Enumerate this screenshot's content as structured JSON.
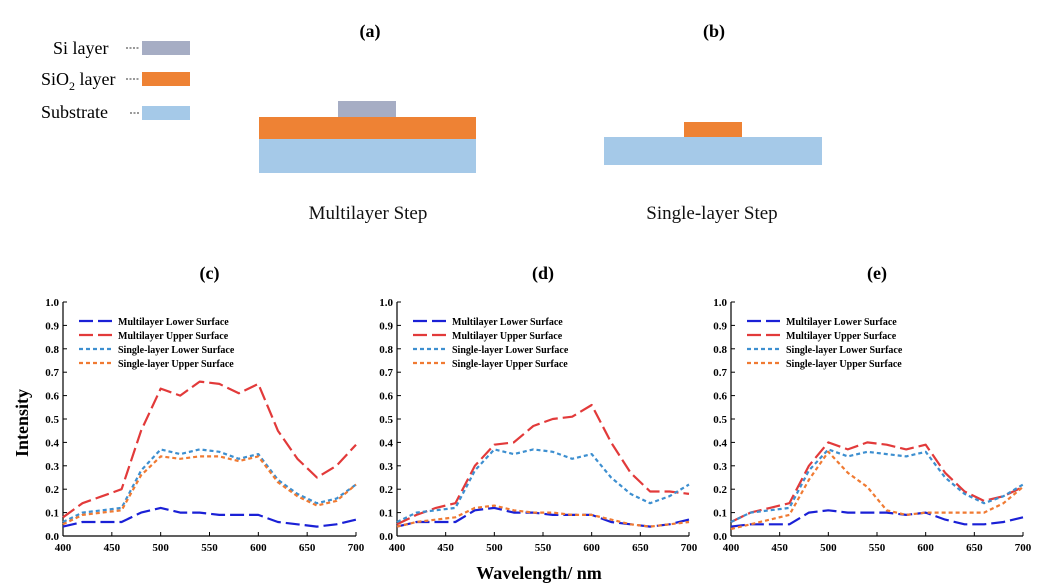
{
  "schematic": {
    "panel_a_title": "(a)",
    "panel_b_title": "(b)",
    "legend": [
      {
        "label": "Si layer",
        "color": "#a6adc4"
      },
      {
        "label": "SiO",
        "sub": "2",
        "suffix": " layer",
        "color": "#ee8234"
      },
      {
        "label": "Substrate",
        "color": "#a5c9e8"
      }
    ],
    "multilayer_caption": "Multilayer Step",
    "singlelayer_caption": "Single-layer Step"
  },
  "colors": {
    "multilayer_lower": "#1a20d6",
    "multilayer_upper": "#e23a3a",
    "singlelayer_lower": "#3d8fd0",
    "singlelayer_upper": "#f07a32"
  },
  "shared_xlabel": "Wavelength/ nm",
  "shared_ylabel": "Intensity",
  "chart_data": [
    {
      "type": "line",
      "title": "(c)",
      "xlim": [
        400,
        700
      ],
      "ylim": [
        0,
        1.0
      ],
      "xticks": [
        400,
        450,
        500,
        550,
        600,
        650,
        700
      ],
      "yticks": [
        0.0,
        0.1,
        0.2,
        0.3,
        0.4,
        0.5,
        0.6,
        0.7,
        0.8,
        0.9,
        1.0
      ],
      "legend_position": "top-left",
      "x": [
        400,
        420,
        440,
        460,
        480,
        500,
        520,
        540,
        560,
        580,
        600,
        620,
        640,
        660,
        680,
        700
      ],
      "series": [
        {
          "name": "Multilayer Lower Surface",
          "key": "multilayer_lower",
          "values": [
            0.04,
            0.06,
            0.06,
            0.06,
            0.1,
            0.12,
            0.1,
            0.1,
            0.09,
            0.09,
            0.09,
            0.06,
            0.05,
            0.04,
            0.05,
            0.07
          ]
        },
        {
          "name": "Multilayer Upper Surface",
          "key": "multilayer_upper",
          "values": [
            0.08,
            0.14,
            0.17,
            0.2,
            0.45,
            0.63,
            0.6,
            0.66,
            0.65,
            0.61,
            0.65,
            0.45,
            0.33,
            0.25,
            0.3,
            0.39
          ]
        },
        {
          "name": "Single-layer Lower Surface",
          "key": "singlelayer_lower",
          "values": [
            0.06,
            0.1,
            0.11,
            0.12,
            0.28,
            0.37,
            0.35,
            0.37,
            0.36,
            0.33,
            0.35,
            0.24,
            0.18,
            0.14,
            0.16,
            0.22
          ]
        },
        {
          "name": "Single-layer Upper Surface",
          "key": "singlelayer_upper",
          "values": [
            0.05,
            0.09,
            0.1,
            0.11,
            0.26,
            0.34,
            0.33,
            0.34,
            0.34,
            0.32,
            0.34,
            0.23,
            0.17,
            0.13,
            0.15,
            0.22
          ]
        }
      ]
    },
    {
      "type": "line",
      "title": "(d)",
      "xlim": [
        400,
        700
      ],
      "ylim": [
        0,
        1.0
      ],
      "xticks": [
        400,
        450,
        500,
        550,
        600,
        650,
        700
      ],
      "yticks": [
        0.0,
        0.1,
        0.2,
        0.3,
        0.4,
        0.5,
        0.6,
        0.7,
        0.8,
        0.9,
        1.0
      ],
      "legend_position": "top-left",
      "x": [
        400,
        420,
        440,
        460,
        480,
        500,
        520,
        540,
        560,
        580,
        600,
        620,
        640,
        660,
        680,
        700
      ],
      "series": [
        {
          "name": "Multilayer Lower Surface",
          "key": "multilayer_lower",
          "values": [
            0.04,
            0.06,
            0.06,
            0.06,
            0.11,
            0.12,
            0.1,
            0.1,
            0.09,
            0.09,
            0.09,
            0.06,
            0.05,
            0.04,
            0.05,
            0.07
          ]
        },
        {
          "name": "Multilayer Upper Surface",
          "key": "multilayer_upper",
          "values": [
            0.05,
            0.09,
            0.12,
            0.14,
            0.3,
            0.39,
            0.4,
            0.47,
            0.5,
            0.51,
            0.56,
            0.4,
            0.27,
            0.19,
            0.19,
            0.18
          ]
        },
        {
          "name": "Single-layer Lower Surface",
          "key": "singlelayer_lower",
          "values": [
            0.06,
            0.1,
            0.11,
            0.12,
            0.28,
            0.37,
            0.35,
            0.37,
            0.36,
            0.33,
            0.35,
            0.25,
            0.18,
            0.14,
            0.17,
            0.22
          ]
        },
        {
          "name": "Single-layer Upper Surface",
          "key": "singlelayer_upper",
          "values": [
            0.04,
            0.06,
            0.07,
            0.08,
            0.12,
            0.13,
            0.11,
            0.1,
            0.1,
            0.09,
            0.09,
            0.07,
            0.05,
            0.04,
            0.05,
            0.06
          ]
        }
      ]
    },
    {
      "type": "line",
      "title": "(e)",
      "xlim": [
        400,
        700
      ],
      "ylim": [
        0,
        1.0
      ],
      "xticks": [
        400,
        450,
        500,
        550,
        600,
        650,
        700
      ],
      "yticks": [
        0.0,
        0.1,
        0.2,
        0.3,
        0.4,
        0.5,
        0.6,
        0.7,
        0.8,
        0.9,
        1.0
      ],
      "legend_position": "top-left",
      "x": [
        400,
        420,
        440,
        460,
        480,
        500,
        520,
        540,
        560,
        580,
        600,
        620,
        640,
        660,
        680,
        700
      ],
      "series": [
        {
          "name": "Multilayer Lower Surface",
          "key": "multilayer_lower",
          "values": [
            0.04,
            0.05,
            0.05,
            0.05,
            0.1,
            0.11,
            0.1,
            0.1,
            0.1,
            0.09,
            0.1,
            0.07,
            0.05,
            0.05,
            0.06,
            0.08
          ]
        },
        {
          "name": "Multilayer Upper Surface",
          "key": "multilayer_upper",
          "values": [
            0.06,
            0.1,
            0.12,
            0.14,
            0.3,
            0.4,
            0.37,
            0.4,
            0.39,
            0.37,
            0.39,
            0.27,
            0.19,
            0.15,
            0.17,
            0.21
          ]
        },
        {
          "name": "Single-layer Lower Surface",
          "key": "singlelayer_lower",
          "values": [
            0.06,
            0.1,
            0.11,
            0.12,
            0.28,
            0.37,
            0.34,
            0.36,
            0.35,
            0.34,
            0.36,
            0.25,
            0.18,
            0.14,
            0.17,
            0.22
          ]
        },
        {
          "name": "Single-layer Upper Surface",
          "key": "singlelayer_upper",
          "values": [
            0.03,
            0.05,
            0.07,
            0.09,
            0.24,
            0.36,
            0.27,
            0.21,
            0.11,
            0.09,
            0.1,
            0.1,
            0.1,
            0.1,
            0.14,
            0.21
          ]
        }
      ]
    }
  ]
}
